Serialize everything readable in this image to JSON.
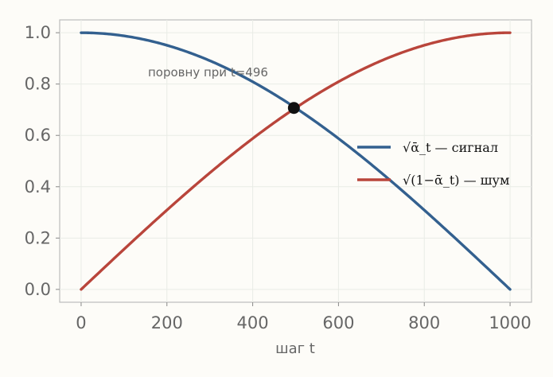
{
  "chart_data": {
    "type": "line",
    "xlabel": "шаг t",
    "xlim": [
      -50,
      1050
    ],
    "ylim": [
      -0.05,
      1.05
    ],
    "xticks": [
      0,
      200,
      400,
      600,
      800,
      1000
    ],
    "yticks": [
      0.0,
      0.2,
      0.4,
      0.6,
      0.8,
      1.0
    ],
    "xtick_labels": [
      "0",
      "200",
      "400",
      "600",
      "800",
      "1000"
    ],
    "ytick_labels": [
      "0.0",
      "0.2",
      "0.4",
      "0.6",
      "0.8",
      "1.0"
    ],
    "grid": true,
    "legend_position": "right",
    "x": [
      0,
      100,
      200,
      300,
      400,
      496,
      600,
      700,
      800,
      900,
      1000
    ],
    "series": [
      {
        "name": "√ᾱ_t — сигнал",
        "color": "#33608f",
        "values": [
          1.0,
          0.986,
          0.951,
          0.891,
          0.809,
          0.707,
          0.588,
          0.454,
          0.309,
          0.156,
          0.0
        ]
      },
      {
        "name": "√(1−ᾱ_t) — шум",
        "color": "#b9453b",
        "values": [
          0.0,
          0.166,
          0.309,
          0.454,
          0.588,
          0.707,
          0.809,
          0.891,
          0.951,
          0.988,
          1.0
        ]
      }
    ],
    "crossing_point": {
      "x": 496,
      "y": 0.707
    },
    "annotation": "поровну при t=496"
  }
}
